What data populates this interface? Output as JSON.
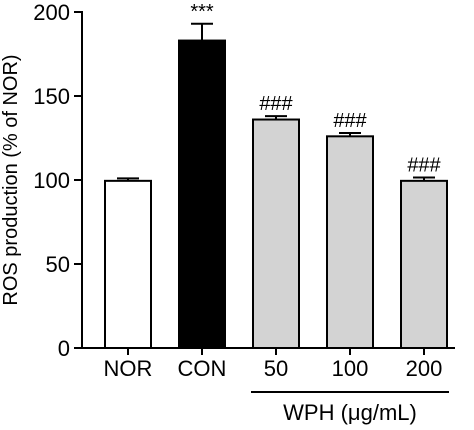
{
  "chart_data": {
    "type": "bar",
    "title": "",
    "xlabel": "",
    "ylabel": "ROS production (% of NOR)",
    "ylim": [
      0,
      200
    ],
    "yticks": [
      0,
      50,
      100,
      150,
      200
    ],
    "categories": [
      "NOR",
      "CON",
      "50",
      "100",
      "200"
    ],
    "values": [
      99.5,
      183,
      136,
      126,
      99.5
    ],
    "errors": [
      1.5,
      10,
      2,
      2,
      2
    ],
    "significance": [
      "",
      "***",
      "###",
      "###",
      "###"
    ],
    "bar_colors": [
      "#ffffff",
      "#000000",
      "#d3d3d3",
      "#d3d3d3",
      "#d3d3d3"
    ],
    "group_label": "WPH (μg/mL)",
    "group_categories": [
      "50",
      "100",
      "200"
    ],
    "grid": false
  }
}
